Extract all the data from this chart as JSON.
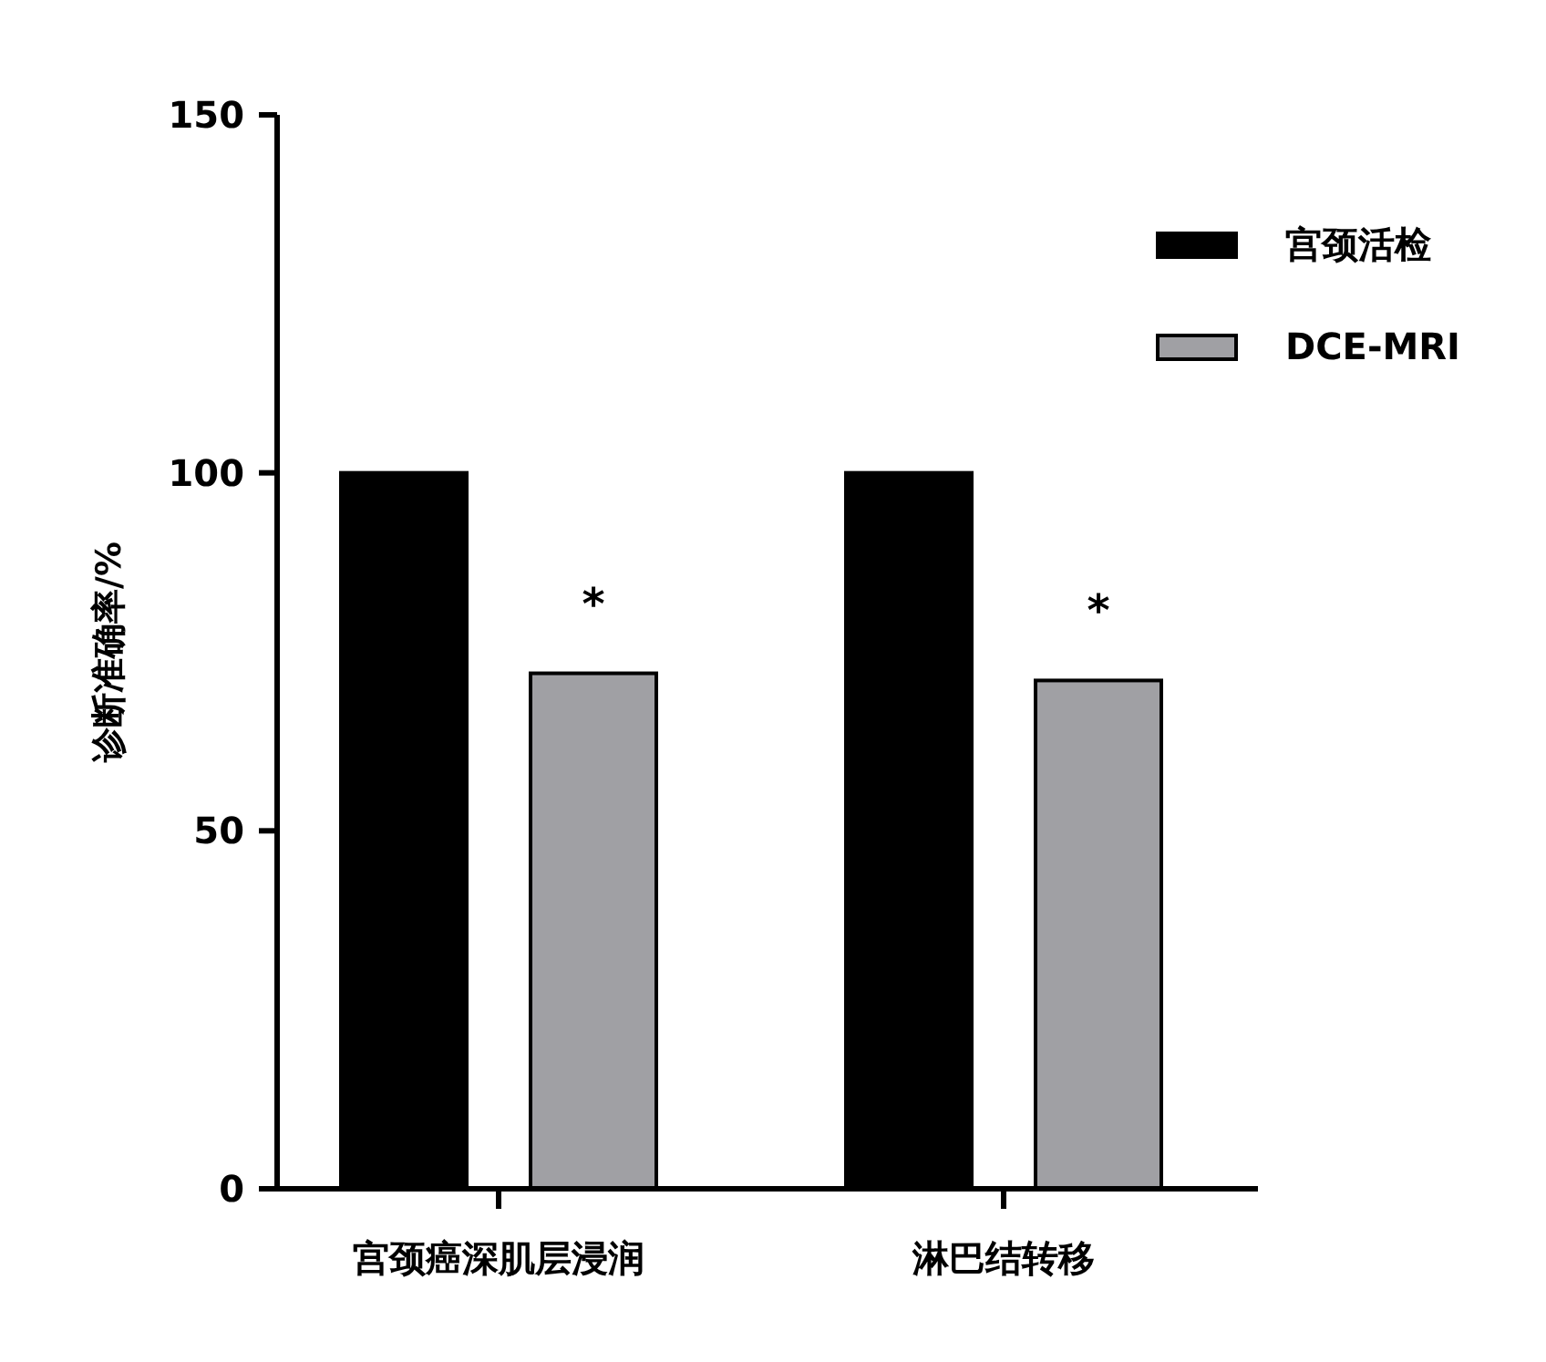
{
  "chart_data": {
    "type": "bar",
    "ylabel": "诊断准确率/%",
    "categories": [
      "宫颈癌深肌层浸润",
      "淋巴结转移"
    ],
    "series": [
      {
        "name": "宫颈活检",
        "color": "#000000",
        "values": [
          100,
          100
        ]
      },
      {
        "name": "DCE-MRI",
        "color": "#a0a0a4",
        "values": [
          72,
          71
        ]
      }
    ],
    "ylim": [
      0,
      150
    ],
    "yticks": [
      0,
      50,
      100,
      150
    ],
    "grid": false,
    "legend": "top right",
    "annotations": [
      "*",
      "*"
    ]
  }
}
